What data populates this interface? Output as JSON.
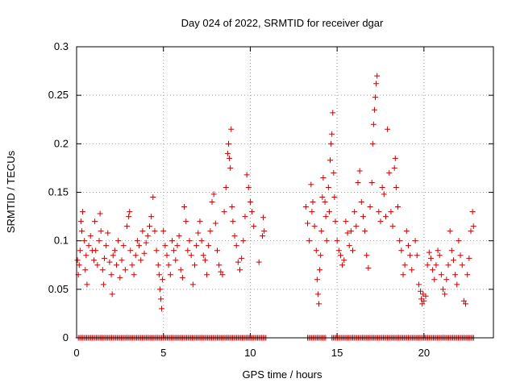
{
  "chart_data": {
    "type": "scatter",
    "title": "Day 024 of 2022, SRMTID for receiver dgar",
    "xlabel": "GPS time / hours",
    "ylabel": "SRMTID / TECUs",
    "xlim": [
      0,
      24
    ],
    "ylim": [
      0,
      0.3
    ],
    "xticks": [
      0,
      5,
      10,
      15,
      20
    ],
    "xtick_labels": [
      "0",
      "5",
      "10",
      "15",
      "20"
    ],
    "yticks": [
      0,
      0.05,
      0.1,
      0.15,
      0.2,
      0.25,
      0.3
    ],
    "ytick_labels": [
      "0",
      "0.05",
      "0.1",
      "0.15",
      "0.2",
      "0.25",
      "0.3"
    ],
    "grid": true,
    "marker": "+",
    "color": "#cc0000",
    "series": [
      {
        "name": "SRMTID",
        "points": [
          [
            0.05,
            0.08
          ],
          [
            0.1,
            0.065
          ],
          [
            0.15,
            0.075
          ],
          [
            0.2,
            0.09
          ],
          [
            0.25,
            0.12
          ],
          [
            0.3,
            0.11
          ],
          [
            0.35,
            0.13
          ],
          [
            0.45,
            0.1
          ],
          [
            0.5,
            0.07
          ],
          [
            0.55,
            0.085
          ],
          [
            0.6,
            0.055
          ],
          [
            0.7,
            0.095
          ],
          [
            0.8,
            0.105
          ],
          [
            0.9,
            0.09
          ],
          [
            1.0,
            0.08
          ],
          [
            1.05,
            0.12
          ],
          [
            1.1,
            0.09
          ],
          [
            1.2,
            0.075
          ],
          [
            1.3,
            0.1
          ],
          [
            1.35,
            0.128
          ],
          [
            1.4,
            0.11
          ],
          [
            1.5,
            0.07
          ],
          [
            1.55,
            0.055
          ],
          [
            1.6,
            0.082
          ],
          [
            1.7,
            0.095
          ],
          [
            1.8,
            0.108
          ],
          [
            1.9,
            0.078
          ],
          [
            2.0,
            0.065
          ],
          [
            2.05,
            0.045
          ],
          [
            2.1,
            0.085
          ],
          [
            2.2,
            0.09
          ],
          [
            2.3,
            0.075
          ],
          [
            2.4,
            0.1
          ],
          [
            2.5,
            0.062
          ],
          [
            2.6,
            0.08
          ],
          [
            2.7,
            0.095
          ],
          [
            2.8,
            0.07
          ],
          [
            2.9,
            0.115
          ],
          [
            3.0,
            0.125
          ],
          [
            3.05,
            0.13
          ],
          [
            3.1,
            0.09
          ],
          [
            3.2,
            0.075
          ],
          [
            3.3,
            0.065
          ],
          [
            3.4,
            0.085
          ],
          [
            3.5,
            0.1
          ],
          [
            3.6,
            0.095
          ],
          [
            3.7,
            0.08
          ],
          [
            3.8,
            0.11
          ],
          [
            3.9,
            0.087
          ],
          [
            4.0,
            0.098
          ],
          [
            4.1,
            0.105
          ],
          [
            4.2,
            0.115
          ],
          [
            4.3,
            0.125
          ],
          [
            4.4,
            0.145
          ],
          [
            4.5,
            0.11
          ],
          [
            4.6,
            0.09
          ],
          [
            4.7,
            0.075
          ],
          [
            4.75,
            0.065
          ],
          [
            4.8,
            0.05
          ],
          [
            4.85,
            0.04
          ],
          [
            4.9,
            0.03
          ],
          [
            4.95,
            0.06
          ],
          [
            5.0,
            0.11
          ],
          [
            5.1,
            0.095
          ],
          [
            5.2,
            0.085
          ],
          [
            5.3,
            0.075
          ],
          [
            5.4,
            0.065
          ],
          [
            5.5,
            0.1
          ],
          [
            5.6,
            0.09
          ],
          [
            5.7,
            0.08
          ],
          [
            5.8,
            0.095
          ],
          [
            5.9,
            0.105
          ],
          [
            6.0,
            0.07
          ],
          [
            6.1,
            0.062
          ],
          [
            6.2,
            0.135
          ],
          [
            6.3,
            0.12
          ],
          [
            6.4,
            0.09
          ],
          [
            6.5,
            0.1
          ],
          [
            6.6,
            0.085
          ],
          [
            6.7,
            0.055
          ],
          [
            6.8,
            0.075
          ],
          [
            6.9,
            0.095
          ],
          [
            7.0,
            0.108
          ],
          [
            7.1,
            0.12
          ],
          [
            7.2,
            0.1
          ],
          [
            7.3,
            0.085
          ],
          [
            7.4,
            0.08
          ],
          [
            7.5,
            0.065
          ],
          [
            7.6,
            0.095
          ],
          [
            7.7,
            0.11
          ],
          [
            7.8,
            0.14
          ],
          [
            7.9,
            0.148
          ],
          [
            8.0,
            0.118
          ],
          [
            8.1,
            0.09
          ],
          [
            8.2,
            0.075
          ],
          [
            8.3,
            0.068
          ],
          [
            8.4,
            0.065
          ],
          [
            8.5,
            0.13
          ],
          [
            8.6,
            0.155
          ],
          [
            8.7,
            0.19
          ],
          [
            8.75,
            0.2
          ],
          [
            8.8,
            0.185
          ],
          [
            8.85,
            0.175
          ],
          [
            8.9,
            0.215
          ],
          [
            8.95,
            0.135
          ],
          [
            9.0,
            0.12
          ],
          [
            9.1,
            0.105
          ],
          [
            9.2,
            0.095
          ],
          [
            9.3,
            0.078
          ],
          [
            9.4,
            0.07
          ],
          [
            9.5,
            0.082
          ],
          [
            9.6,
            0.1
          ],
          [
            9.7,
            0.125
          ],
          [
            9.8,
            0.168
          ],
          [
            9.9,
            0.155
          ],
          [
            10.0,
            0.14
          ],
          [
            10.1,
            0.13
          ],
          [
            10.2,
            0.115
          ],
          [
            10.5,
            0.078
          ],
          [
            10.7,
            0.105
          ],
          [
            10.75,
            0.124
          ],
          [
            10.8,
            0.11
          ],
          [
            13.2,
            0.135
          ],
          [
            13.3,
            0.118
          ],
          [
            13.4,
            0.1
          ],
          [
            13.5,
            0.158
          ],
          [
            13.55,
            0.13
          ],
          [
            13.6,
            0.14
          ],
          [
            13.7,
            0.115
          ],
          [
            13.8,
            0.09
          ],
          [
            13.85,
            0.06
          ],
          [
            13.9,
            0.045
          ],
          [
            13.95,
            0.035
          ],
          [
            14.0,
            0.07
          ],
          [
            14.05,
            0.085
          ],
          [
            14.1,
            0.11
          ],
          [
            14.15,
            0.145
          ],
          [
            14.2,
            0.165
          ],
          [
            14.3,
            0.14
          ],
          [
            14.35,
            0.125
          ],
          [
            14.4,
            0.1
          ],
          [
            14.5,
            0.155
          ],
          [
            14.55,
            0.13
          ],
          [
            14.6,
            0.183
          ],
          [
            14.65,
            0.2
          ],
          [
            14.7,
            0.21
          ],
          [
            14.75,
            0.232
          ],
          [
            14.8,
            0.17
          ],
          [
            14.85,
            0.145
          ],
          [
            14.9,
            0.12
          ],
          [
            15.0,
            0.1
          ],
          [
            15.1,
            0.09
          ],
          [
            15.2,
            0.085
          ],
          [
            15.3,
            0.075
          ],
          [
            15.4,
            0.08
          ],
          [
            15.5,
            0.12
          ],
          [
            15.6,
            0.108
          ],
          [
            15.7,
            0.095
          ],
          [
            15.8,
            0.11
          ],
          [
            15.9,
            0.09
          ],
          [
            16.0,
            0.13
          ],
          [
            16.1,
            0.115
          ],
          [
            16.2,
            0.16
          ],
          [
            16.3,
            0.172
          ],
          [
            16.4,
            0.14
          ],
          [
            16.5,
            0.125
          ],
          [
            16.6,
            0.11
          ],
          [
            16.7,
            0.085
          ],
          [
            16.8,
            0.072
          ],
          [
            16.9,
            0.135
          ],
          [
            17.0,
            0.16
          ],
          [
            17.05,
            0.2
          ],
          [
            17.1,
            0.22
          ],
          [
            17.15,
            0.235
          ],
          [
            17.2,
            0.248
          ],
          [
            17.25,
            0.262
          ],
          [
            17.3,
            0.27
          ],
          [
            17.4,
            0.13
          ],
          [
            17.5,
            0.12
          ],
          [
            17.6,
            0.155
          ],
          [
            17.7,
            0.148
          ],
          [
            17.8,
            0.125
          ],
          [
            17.9,
            0.215
          ],
          [
            18.0,
            0.17
          ],
          [
            18.1,
            0.13
          ],
          [
            18.2,
            0.115
          ],
          [
            18.3,
            0.175
          ],
          [
            18.35,
            0.185
          ],
          [
            18.4,
            0.155
          ],
          [
            18.5,
            0.135
          ],
          [
            18.6,
            0.1
          ],
          [
            18.7,
            0.09
          ],
          [
            18.8,
            0.065
          ],
          [
            18.9,
            0.075
          ],
          [
            19.0,
            0.11
          ],
          [
            19.1,
            0.095
          ],
          [
            19.2,
            0.085
          ],
          [
            19.3,
            0.07
          ],
          [
            19.5,
            0.1
          ],
          [
            19.6,
            0.085
          ],
          [
            19.7,
            0.055
          ],
          [
            19.8,
            0.048
          ],
          [
            19.85,
            0.04
          ],
          [
            19.9,
            0.035
          ],
          [
            19.95,
            0.045
          ],
          [
            20.0,
            0.038
          ],
          [
            20.1,
            0.043
          ],
          [
            20.2,
            0.075
          ],
          [
            20.3,
            0.088
          ],
          [
            20.4,
            0.082
          ],
          [
            20.5,
            0.07
          ],
          [
            20.6,
            0.06
          ],
          [
            20.7,
            0.075
          ],
          [
            20.8,
            0.09
          ],
          [
            20.9,
            0.085
          ],
          [
            21.0,
            0.065
          ],
          [
            21.1,
            0.05
          ],
          [
            21.2,
            0.045
          ],
          [
            21.3,
            0.06
          ],
          [
            21.4,
            0.075
          ],
          [
            21.5,
            0.11
          ],
          [
            21.6,
            0.09
          ],
          [
            21.7,
            0.08
          ],
          [
            21.8,
            0.065
          ],
          [
            21.9,
            0.055
          ],
          [
            22.0,
            0.1
          ],
          [
            22.1,
            0.085
          ],
          [
            22.2,
            0.075
          ],
          [
            22.3,
            0.038
          ],
          [
            22.4,
            0.035
          ],
          [
            22.5,
            0.065
          ],
          [
            22.6,
            0.082
          ],
          [
            22.7,
            0.11
          ],
          [
            22.8,
            0.13
          ],
          [
            22.85,
            0.115
          ]
        ]
      }
    ],
    "zero_intervals": [
      [
        0.1,
        10.9
      ],
      [
        13.3,
        14.4
      ],
      [
        14.7,
        22.9
      ]
    ]
  }
}
